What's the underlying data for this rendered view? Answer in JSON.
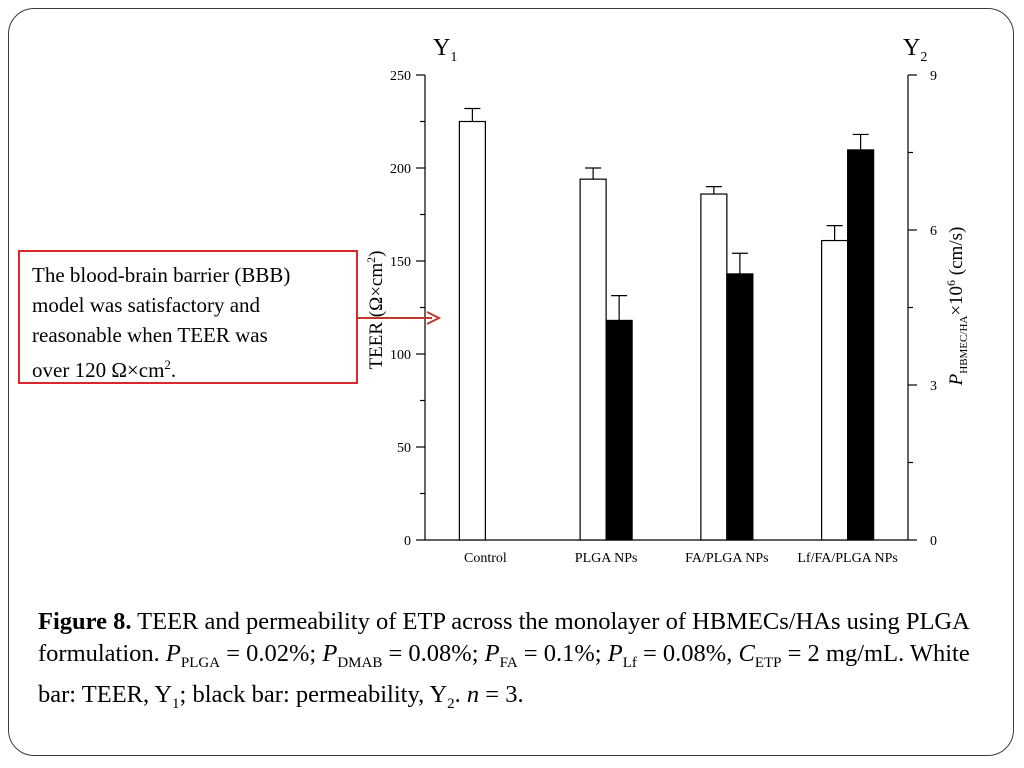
{
  "callout": {
    "line1": "The blood-brain barrier (BBB)",
    "line2": "model was satisfactory and",
    "line3": "reasonable when TEER was",
    "line4_pre": "over 120 Ω×cm",
    "line4_sup": "2",
    "line4_post": "."
  },
  "caption": {
    "label": "Figure 8.",
    "text1": "TEER and permeability of ETP across the monolayer of HBMECs/HAs using PLGA formulation.",
    "p": "P",
    "plga_sub": "PLGA",
    "plga_val": "= 0.02%;",
    "dmab_sub": "DMAB",
    "dmab_val": "= 0.08%;",
    "fa_sub": "FA",
    "fa_val": "= 0.1%;",
    "lf_sub": "Lf",
    "lf_val": "= 0.08%,",
    "c": "C",
    "etp_sub": "ETP",
    "etp_val": "= 2 mg/mL. White bar: TEER, Y",
    "y1_sub": "1",
    "text2": "; black bar: permeability, Y",
    "y2_sub": "2",
    "text3": ".",
    "n": "n",
    "n_val": "= 3."
  },
  "chart_data": {
    "type": "bar",
    "categories": [
      "Control",
      "PLGA NPs",
      "FA/PLGA NPs",
      "Lf/FA/PLGA NPs"
    ],
    "series": [
      {
        "axis": "Y1",
        "fill": "#ffffff",
        "values": [
          225,
          194,
          186,
          161
        ],
        "errors": [
          7,
          6,
          4,
          8
        ]
      },
      {
        "axis": "Y2",
        "fill": "#000000",
        "values": [
          null,
          4.25,
          5.15,
          7.55
        ],
        "errors": [
          null,
          0.48,
          0.4,
          0.3
        ]
      }
    ],
    "y1": {
      "label": "Y",
      "label_sub": "1",
      "title_pre": "TEER (Ω×cm",
      "title_sup": "2",
      "title_post": ")",
      "ylim": [
        0,
        250
      ],
      "ticks": [
        "0",
        "50",
        "100",
        "150",
        "200",
        "250"
      ]
    },
    "y2": {
      "label": "Y",
      "label_sub": "2",
      "title_p": "P",
      "title_sub": "HBMEC/HA",
      "title_mid": "×10",
      "title_sup": "6",
      "title_post": " (cm/s)",
      "ylim": [
        0,
        9
      ],
      "ticks": [
        "0",
        "3",
        "6",
        "9"
      ]
    }
  }
}
